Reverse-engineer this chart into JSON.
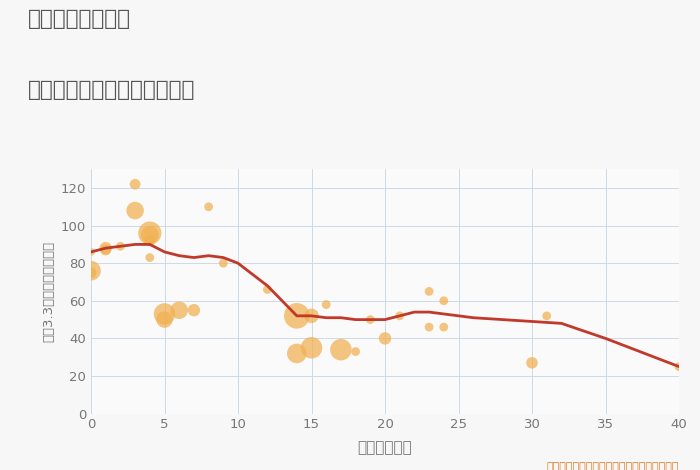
{
  "title_line1": "三重県桑名市里町",
  "title_line2": "築年数別中古マンション価格",
  "xlabel": "築年数（年）",
  "ylabel": "坪（3.3㎡）単価（万円）",
  "annotation": "円の大きさは、取引のあった物件面積を示す",
  "background_color": "#f7f7f7",
  "plot_bg_color": "#fafafa",
  "grid_color": "#ccd9e8",
  "xlim": [
    0,
    40
  ],
  "ylim": [
    0,
    130
  ],
  "xticks": [
    0,
    5,
    10,
    15,
    20,
    25,
    30,
    35,
    40
  ],
  "yticks": [
    0,
    20,
    40,
    60,
    80,
    100,
    120
  ],
  "scatter_x": [
    0,
    0,
    0,
    1,
    1,
    2,
    3,
    3,
    4,
    4,
    4,
    4,
    5,
    5,
    6,
    7,
    8,
    9,
    12,
    14,
    14,
    15,
    15,
    16,
    17,
    18,
    19,
    20,
    21,
    23,
    23,
    24,
    24,
    30,
    31,
    40
  ],
  "scatter_y": [
    86,
    76,
    75,
    88,
    87,
    89,
    122,
    108,
    96,
    95,
    92,
    83,
    53,
    50,
    55,
    55,
    110,
    80,
    66,
    52,
    32,
    52,
    35,
    58,
    34,
    33,
    50,
    40,
    52,
    65,
    46,
    60,
    46,
    27,
    52,
    25
  ],
  "scatter_size": [
    30,
    200,
    60,
    80,
    60,
    40,
    60,
    160,
    280,
    160,
    60,
    40,
    240,
    140,
    160,
    80,
    40,
    40,
    40,
    340,
    200,
    110,
    240,
    40,
    240,
    40,
    40,
    80,
    40,
    40,
    40,
    40,
    40,
    70,
    40,
    40
  ],
  "scatter_color": "#f0b050",
  "scatter_alpha": 0.72,
  "line_x": [
    0,
    1,
    2,
    3,
    4,
    5,
    6,
    7,
    8,
    9,
    10,
    12,
    14,
    15,
    16,
    17,
    18,
    19,
    20,
    21,
    22,
    23,
    24,
    25,
    26,
    28,
    30,
    32,
    35,
    40
  ],
  "line_y": [
    86,
    88,
    89,
    90,
    90,
    86,
    84,
    83,
    84,
    83,
    80,
    68,
    52,
    52,
    51,
    51,
    50,
    50,
    50,
    52,
    54,
    54,
    53,
    52,
    51,
    50,
    49,
    48,
    40,
    25
  ],
  "line_color": "#c0392b",
  "line_width": 2.0,
  "title_color": "#555555",
  "axis_label_color": "#777777",
  "tick_color": "#777777",
  "annotation_color": "#e07820"
}
